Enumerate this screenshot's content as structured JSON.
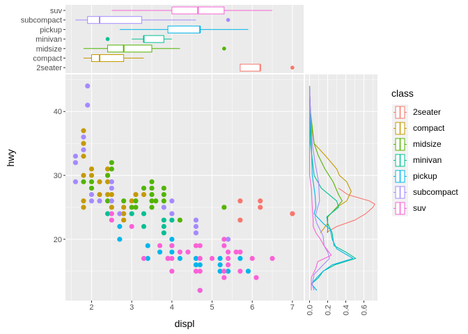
{
  "chart_data": [
    {
      "type": "scatter",
      "xlabel": "displ",
      "ylabel": "hwy",
      "xlim": [
        1.35,
        7.28
      ],
      "ylim": [
        10.4,
        45.8
      ],
      "xticks": [
        2,
        3,
        4,
        5,
        6,
        7
      ],
      "yticks": [
        20,
        30,
        40
      ],
      "grid": true,
      "colors": {
        "2seater": "#F8766D",
        "compact": "#C49A00",
        "midsize": "#53B400",
        "minivan": "#00C094",
        "pickup": "#00B6EB",
        "subcompact": "#A58AFF",
        "suv": "#FB61D7"
      },
      "series": [
        {
          "name": "2seater",
          "points": [
            [
              5.7,
              26
            ],
            [
              6.2,
              26
            ],
            [
              6.2,
              25
            ],
            [
              5.7,
              23
            ],
            [
              7.0,
              24
            ]
          ]
        },
        {
          "name": "compact",
          "points": [
            [
              1.8,
              37
            ],
            [
              1.8,
              35
            ],
            [
              1.8,
              33
            ],
            [
              2.0,
              31
            ],
            [
              2.4,
              31
            ],
            [
              1.8,
              30
            ],
            [
              2.0,
              30
            ],
            [
              2.4,
              30
            ],
            [
              2.2,
              29
            ],
            [
              2.4,
              29
            ],
            [
              2.2,
              27
            ],
            [
              2.4,
              27
            ],
            [
              2.5,
              27
            ],
            [
              1.8,
              26
            ],
            [
              1.8,
              25
            ],
            [
              2.5,
              25
            ],
            [
              2.8,
              25
            ],
            [
              2.8,
              24
            ],
            [
              2.8,
              23
            ],
            [
              3.0,
              26
            ],
            [
              3.1,
              27
            ],
            [
              3.3,
              27
            ]
          ]
        },
        {
          "name": "midsize",
          "points": [
            [
              2.5,
              32
            ],
            [
              2.5,
              31
            ],
            [
              2.4,
              30
            ],
            [
              1.8,
              29
            ],
            [
              2.0,
              29
            ],
            [
              2.0,
              28
            ],
            [
              2.4,
              26
            ],
            [
              2.8,
              26
            ],
            [
              3.0,
              25
            ],
            [
              3.1,
              26
            ],
            [
              3.1,
              25
            ],
            [
              3.5,
              29
            ],
            [
              3.5,
              28
            ],
            [
              3.5,
              27
            ],
            [
              3.5,
              26
            ],
            [
              3.6,
              26
            ],
            [
              3.5,
              25
            ],
            [
              3.8,
              28
            ],
            [
              3.8,
              27
            ],
            [
              3.8,
              26
            ],
            [
              4.2,
              23
            ],
            [
              5.3,
              25
            ],
            [
              3.3,
              28
            ]
          ]
        },
        {
          "name": "minivan",
          "points": [
            [
              2.4,
              24
            ],
            [
              3.0,
              24
            ],
            [
              3.3,
              24
            ],
            [
              3.3,
              22
            ],
            [
              3.8,
              23
            ],
            [
              3.8,
              22
            ],
            [
              3.8,
              21
            ],
            [
              4.0,
              23
            ]
          ]
        },
        {
          "name": "pickup",
          "points": [
            [
              2.7,
              22
            ],
            [
              2.7,
              20
            ],
            [
              3.4,
              19
            ],
            [
              3.4,
              17
            ],
            [
              3.7,
              18
            ],
            [
              4.0,
              20
            ],
            [
              4.0,
              19
            ],
            [
              4.0,
              18
            ],
            [
              4.2,
              17
            ],
            [
              4.6,
              17
            ],
            [
              4.6,
              16
            ],
            [
              4.7,
              16
            ],
            [
              5.2,
              17
            ],
            [
              5.2,
              16
            ],
            [
              5.2,
              15
            ],
            [
              5.4,
              15
            ],
            [
              5.7,
              17
            ],
            [
              5.9,
              15
            ],
            [
              4.7,
              12
            ]
          ]
        },
        {
          "name": "subcompact",
          "points": [
            [
              1.9,
              44
            ],
            [
              1.9,
              41
            ],
            [
              1.8,
              36
            ],
            [
              1.8,
              34
            ],
            [
              1.6,
              33
            ],
            [
              1.6,
              32
            ],
            [
              1.6,
              29
            ],
            [
              2.5,
              29
            ],
            [
              2.5,
              28
            ],
            [
              2.0,
              27
            ],
            [
              2.0,
              26
            ],
            [
              2.2,
              26
            ],
            [
              2.5,
              26
            ],
            [
              2.7,
              24
            ],
            [
              4.0,
              26
            ],
            [
              3.8,
              25
            ],
            [
              4.0,
              24
            ],
            [
              4.6,
              23
            ],
            [
              4.6,
              22
            ],
            [
              4.6,
              21
            ],
            [
              5.4,
              20
            ],
            [
              3.9,
              17
            ]
          ]
        },
        {
          "name": "suv",
          "points": [
            [
              2.5,
              24
            ],
            [
              2.5,
              23
            ],
            [
              3.0,
              22
            ],
            [
              3.3,
              17
            ],
            [
              3.7,
              19
            ],
            [
              3.9,
              17
            ],
            [
              4.0,
              19
            ],
            [
              4.0,
              17
            ],
            [
              4.0,
              15
            ],
            [
              4.2,
              18
            ],
            [
              4.4,
              18
            ],
            [
              4.6,
              19
            ],
            [
              4.7,
              19
            ],
            [
              4.7,
              17
            ],
            [
              4.6,
              15
            ],
            [
              4.7,
              15
            ],
            [
              5.0,
              17
            ],
            [
              5.3,
              20
            ],
            [
              5.3,
              19
            ],
            [
              5.4,
              18
            ],
            [
              5.4,
              17
            ],
            [
              5.4,
              16
            ],
            [
              5.3,
              15
            ],
            [
              5.3,
              14
            ],
            [
              5.6,
              18
            ],
            [
              5.7,
              18
            ],
            [
              5.7,
              15
            ],
            [
              6.0,
              17
            ],
            [
              6.1,
              14
            ],
            [
              6.5,
              17
            ],
            [
              4.7,
              12
            ]
          ]
        }
      ]
    },
    {
      "type": "boxplot",
      "orientation": "horizontal",
      "value_axis": "displ",
      "categories": [
        "suv",
        "subcompact",
        "pickup",
        "minivan",
        "midsize",
        "compact",
        "2seater"
      ],
      "boxes": [
        {
          "name": "suv",
          "whisker_low": 2.5,
          "q1": 4.0,
          "median": 4.65,
          "q3": 5.3,
          "whisker_high": 6.5,
          "outliers": []
        },
        {
          "name": "subcompact",
          "whisker_low": 1.6,
          "q1": 1.9,
          "median": 2.2,
          "q3": 3.25,
          "whisker_high": 4.6,
          "outliers": [
            5.4
          ]
        },
        {
          "name": "pickup",
          "whisker_low": 2.7,
          "q1": 3.9,
          "median": 4.7,
          "q3": 4.7,
          "whisker_high": 5.9,
          "outliers": []
        },
        {
          "name": "minivan",
          "whisker_low": 3.0,
          "q1": 3.3,
          "median": 3.3,
          "q3": 3.8,
          "whisker_high": 4.0,
          "outliers": [
            2.4
          ]
        },
        {
          "name": "midsize",
          "whisker_low": 1.8,
          "q1": 2.4,
          "median": 2.8,
          "q3": 3.5,
          "whisker_high": 4.2,
          "outliers": [
            5.3
          ]
        },
        {
          "name": "compact",
          "whisker_low": 1.8,
          "q1": 2.0,
          "median": 2.2,
          "q3": 2.8,
          "whisker_high": 3.3,
          "outliers": []
        },
        {
          "name": "2seater",
          "whisker_low": 5.7,
          "q1": 5.7,
          "median": 6.2,
          "q3": 6.2,
          "whisker_high": 6.2,
          "outliers": [
            7.0
          ]
        }
      ]
    },
    {
      "type": "line",
      "orientation": "vertical",
      "value_axis": "hwy",
      "xlim": [
        -0.05,
        0.75
      ],
      "xticks": [
        "0.0",
        "0.2",
        "0.4",
        "0.6"
      ],
      "series": [
        {
          "name": "2seater",
          "points": [
            [
              21.1,
              0.19
            ],
            [
              22,
              0.3
            ],
            [
              23,
              0.5
            ],
            [
              24,
              0.62
            ],
            [
              25,
              0.7
            ],
            [
              25.5,
              0.72
            ],
            [
              26,
              0.66
            ],
            [
              27,
              0.42
            ],
            [
              28,
              0.32
            ]
          ]
        },
        {
          "name": "compact",
          "points": [
            [
              21,
              0.12
            ],
            [
              22.5,
              0.2
            ],
            [
              23.5,
              0.2
            ],
            [
              25,
              0.3
            ],
            [
              26,
              0.41
            ],
            [
              27.5,
              0.46
            ],
            [
              29,
              0.41
            ],
            [
              30,
              0.33
            ],
            [
              31,
              0.3
            ],
            [
              33,
              0.18
            ],
            [
              35,
              0.05
            ],
            [
              37,
              0.03
            ],
            [
              40,
              0.01
            ],
            [
              44,
              0
            ]
          ]
        },
        {
          "name": "midsize",
          "points": [
            [
              21,
              0.2
            ],
            [
              22.5,
              0.2
            ],
            [
              23.5,
              0.2
            ],
            [
              25,
              0.3
            ],
            [
              26,
              0.36
            ],
            [
              27,
              0.32
            ],
            [
              29,
              0.26
            ],
            [
              31,
              0.17
            ],
            [
              33,
              0.1
            ],
            [
              35,
              0.05
            ],
            [
              40,
              0.01
            ],
            [
              44,
              0
            ]
          ]
        },
        {
          "name": "minivan",
          "points": [
            [
              12,
              0.08
            ],
            [
              13,
              0.02
            ],
            [
              14,
              0.1
            ],
            [
              15,
              0.15
            ],
            [
              16,
              0.28
            ],
            [
              17,
              0.51
            ],
            [
              18,
              0.4
            ],
            [
              19,
              0.27
            ],
            [
              21,
              0.25
            ],
            [
              22.5,
              0.2
            ],
            [
              23.5,
              0.19
            ],
            [
              25,
              0.32
            ],
            [
              26,
              0.3
            ],
            [
              28,
              0.13
            ],
            [
              30,
              0.05
            ],
            [
              35,
              0.01
            ],
            [
              44,
              0
            ]
          ]
        },
        {
          "name": "pickup",
          "points": [
            [
              12,
              0.08
            ],
            [
              13,
              0.02
            ],
            [
              14,
              0.08
            ],
            [
              15,
              0.15
            ],
            [
              16,
              0.25
            ],
            [
              17,
              0.48
            ],
            [
              18.5,
              0.3
            ],
            [
              20,
              0.25
            ],
            [
              21.5,
              0.23
            ],
            [
              22.5,
              0.15
            ],
            [
              24,
              0.05
            ],
            [
              25,
              0.07
            ],
            [
              27,
              0.06
            ],
            [
              30,
              0.03
            ],
            [
              44,
              0
            ]
          ]
        },
        {
          "name": "subcompact",
          "points": [
            [
              12,
              0.05
            ],
            [
              13,
              0.03
            ],
            [
              14.5,
              0.05
            ],
            [
              16,
              0.15
            ],
            [
              17,
              0.22
            ],
            [
              18,
              0.2
            ],
            [
              19,
              0.16
            ],
            [
              20.5,
              0.15
            ],
            [
              22.5,
              0.08
            ],
            [
              23.5,
              0.06
            ],
            [
              26,
              0.11
            ],
            [
              29,
              0.1
            ],
            [
              32,
              0.06
            ],
            [
              35,
              0.03
            ],
            [
              40,
              0.01
            ],
            [
              44,
              0
            ]
          ]
        },
        {
          "name": "suv",
          "points": [
            [
              12,
              0.02
            ],
            [
              14,
              0.02
            ],
            [
              15.5,
              0.07
            ],
            [
              16.5,
              0.09
            ],
            [
              17.5,
              0.24
            ],
            [
              19,
              0.16
            ],
            [
              20,
              0.12
            ],
            [
              21,
              0.07
            ],
            [
              22,
              0.04
            ],
            [
              23,
              0.04
            ],
            [
              25,
              0.03
            ],
            [
              28,
              0.02
            ],
            [
              30,
              0
            ],
            [
              44,
              0
            ]
          ]
        }
      ]
    }
  ],
  "legend": {
    "title": "class",
    "position": "right",
    "items": [
      "2seater",
      "compact",
      "midsize",
      "minivan",
      "pickup",
      "subcompact",
      "suv"
    ]
  }
}
